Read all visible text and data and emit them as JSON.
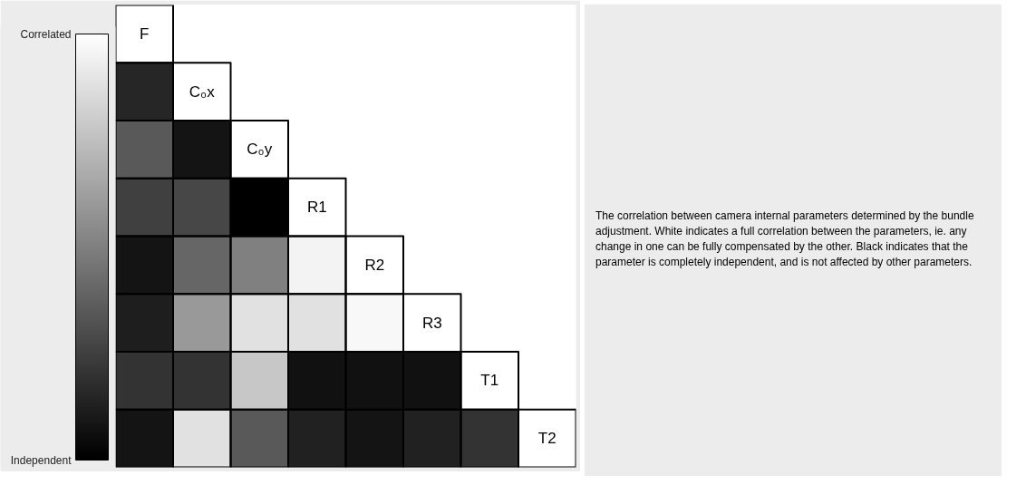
{
  "chart_data": {
    "type": "heatmap",
    "categories": [
      null,
      null,
      null,
      null,
      null,
      null,
      null,
      null
    ],
    "y_categories": [
      null,
      null,
      null,
      null,
      null,
      null,
      null,
      null
    ],
    "cells": [
      [
        1,
        null,
        null,
        null,
        null,
        null,
        null,
        null
      ],
      [
        0.15,
        1,
        null,
        null,
        null,
        null,
        null,
        null
      ],
      [
        0.35,
        0.08,
        1,
        null,
        null,
        null,
        null,
        null
      ],
      [
        0.25,
        0.28,
        0.0,
        1,
        null,
        null,
        null,
        null
      ],
      [
        0.08,
        0.4,
        0.5,
        0.95,
        1,
        null,
        null,
        null
      ],
      [
        0.12,
        0.6,
        0.88,
        0.88,
        0.97,
        1,
        null,
        null
      ],
      [
        0.2,
        0.2,
        0.78,
        0.07,
        0.07,
        0.07,
        1,
        null
      ],
      [
        0.08,
        0.88,
        0.35,
        0.13,
        0.08,
        0.13,
        0.2,
        1
      ]
    ],
    "cell_labels": [
      [
        "F",
        null,
        null,
        null,
        null,
        null,
        null,
        null
      ],
      [
        null,
        "C₀x",
        null,
        null,
        null,
        null,
        null,
        null
      ],
      [
        null,
        null,
        "C₀y",
        null,
        null,
        null,
        null,
        null
      ],
      [
        null,
        null,
        null,
        "R1",
        null,
        null,
        null,
        null
      ],
      [
        null,
        null,
        null,
        null,
        "R2",
        null,
        null,
        null
      ],
      [
        null,
        null,
        null,
        null,
        null,
        "R3",
        null,
        null
      ],
      [
        null,
        null,
        null,
        null,
        null,
        null,
        "T1",
        null
      ],
      [
        null,
        null,
        null,
        null,
        null,
        null,
        null,
        "T2"
      ]
    ],
    "clim": [
      0,
      1
    ],
    "cticks": [
      {
        "value": 0,
        "label": "Independent"
      },
      {
        "value": 1,
        "label": "Correlated"
      }
    ],
    "grid": false,
    "tick_labels": false,
    "annotations": [
      "The correlation between camera internal parameters determined by the bundle adjustment. White indicates a full correlation between the parameters, ie. any change in one can be fully compensated by the other. Black indicates that the parameter is completely independent, and is not affected by other parameters."
    ]
  }
}
